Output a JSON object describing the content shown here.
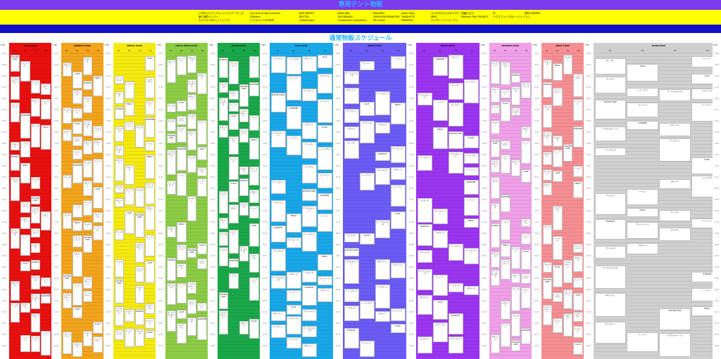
{
  "banner": {
    "title": "専用テント物販",
    "colors": {
      "top": "#7c3aed",
      "middle": "#ffff00",
      "bottom": "#1010c8",
      "title": "#2fb6ff"
    },
    "rows": [
      [
        "[ 2PM ]ファイナルシャツ/ツアーグッズ",
        "Go Love To Band Arches",
        "JAM SPIRITS",
        "BiSH JAM",
        "BACKSEC",
        "Atom Kitty",
        "カバカタ/カバカタマガシ",
        "見届ける人",
        "冬",
        "週刊少年BEM"
      ],
      [
        "東仁事件メンバー",
        "ZIMomo",
        "BYOTTA",
        "ROCKMUSIC",
        "GROOVEN MONSTER",
        "TANSHOTE",
        "MKB",
        "Memory PAL PROJECT",
        "ハウスファンク&ビーエイトラン",
        ""
      ],
      [
        "カラフルラボ/ミュージック",
        "ハウスメイド/ETAGE",
        "ClassiCrown",
        "momentum symphony",
        "Mr.Craver",
        "MAMMOS",
        "アンサーニャーヒーアン",
        "",
        "",
        ""
      ]
    ]
  },
  "main_title": "通常物販スケジュール",
  "time_header": "TIME",
  "sub_columns": [
    "7/1",
    "7/2",
    "7/3",
    "7/4"
  ],
  "stages": [
    {
      "name": "SMILE STAGE",
      "color": "#e81010"
    },
    {
      "name": "PREMIUM STAGE",
      "color": "#f2a41c"
    },
    {
      "name": "SPECIAL STAGE",
      "color": "#f5ea10"
    },
    {
      "name": "LOVE & PEACE STAGE",
      "color": "#8ccc45"
    },
    {
      "name": "OCEAN STAGE",
      "color": "#1aa84a"
    },
    {
      "name": "BLUE STAGE",
      "color": "#19a7e8"
    },
    {
      "name": "GREAT STAGE",
      "color": "#6b5cf5"
    },
    {
      "name": "EXCITE STAGE",
      "color": "#9b35f0"
    },
    {
      "name": "BLOSSOM STAGE",
      "color": "#f0a0e8"
    },
    {
      "name": "ANGEL STAGE",
      "color": "#f58f93"
    },
    {
      "name": "MOON STAGE",
      "color": "#d0d0d0"
    }
  ],
  "time_ticks": [
    "10:00",
    "10:30",
    "11:00",
    "11:30",
    "12:00",
    "12:30",
    "13:00",
    "13:30",
    "14:00",
    "14:30",
    "15:00",
    "15:30",
    "16:00",
    "16:30",
    "17:00",
    "17:30",
    "18:00",
    "18:30",
    "19:00",
    "19:30",
    "20:00",
    "20:30",
    "21:00",
    "21:30",
    "22:00",
    "22:30",
    "23:00"
  ],
  "blocks": [
    [
      "ELECTRIC RIDE",
      "カタルシス",
      "ザ・クリエイターズ",
      "レッドシグナル"
    ],
    [
      "ハニーハニー",
      "ミラクルステーション",
      "フィーバー",
      "ネオンライト"
    ],
    [
      "ポップコーン",
      "SUNSHINE",
      "ドリームガール",
      "ALIVE"
    ],
    [
      "アクアリウム",
      "スカイハイ",
      "シャイニー",
      "ベイビーズ"
    ],
    [
      "STARDUST",
      "ムーンライト",
      "グリッター",
      "FRIDAY"
    ],
    [
      "ブルーモーメント",
      "サマーデイズ",
      "FLASH",
      "ゴールデン"
    ]
  ]
}
